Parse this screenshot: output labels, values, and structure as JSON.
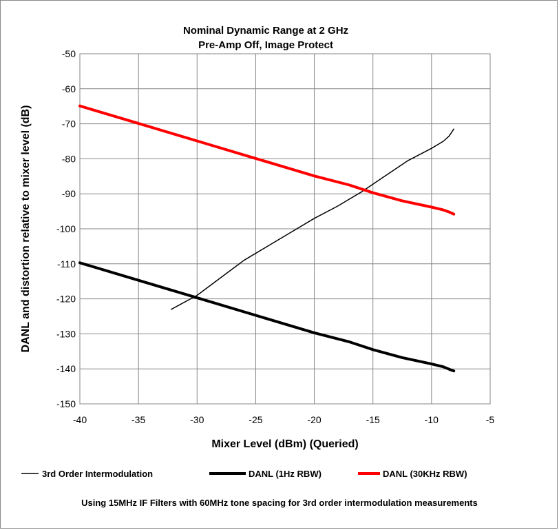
{
  "chart_data": {
    "type": "line",
    "title": "Nominal Dynamic Range at 2 GHz",
    "subtitle": "Pre-Amp Off, Image Protect",
    "xlabel": "Mixer Level (dBm) (Queried)",
    "ylabel": "DANL and distortion relative to mixer level (dB)",
    "xlim": [
      -40,
      -5
    ],
    "ylim": [
      -150,
      -50
    ],
    "xticks": [
      "-40",
      "-35",
      "-30",
      "-25",
      "-20",
      "-15",
      "-10",
      "-5"
    ],
    "yticks": [
      "-50",
      "-60",
      "-70",
      "-80",
      "-90",
      "-100",
      "-110",
      "-120",
      "-130",
      "-140",
      "-150"
    ],
    "xtick_values": [
      -40,
      -35,
      -30,
      -25,
      -20,
      -15,
      -10,
      -5
    ],
    "ytick_values": [
      -50,
      -60,
      -70,
      -80,
      -90,
      -100,
      -110,
      -120,
      -130,
      -140,
      -150
    ],
    "grid": true,
    "legend_position": "bottom",
    "series": [
      {
        "name": "3rd Order Intermodulation",
        "color": "#000000",
        "weight": "thin",
        "x": [
          -32.2,
          -30,
          -28,
          -26,
          -24,
          -22,
          -20,
          -18,
          -16,
          -14,
          -12,
          -10,
          -9,
          -8.5,
          -8.1
        ],
        "y": [
          -123,
          -119,
          -114,
          -109,
          -105,
          -101,
          -97,
          -93.5,
          -89.5,
          -85,
          -80.5,
          -77,
          -75,
          -73.5,
          -71.5
        ]
      },
      {
        "name": "DANL (1Hz RBW)",
        "color": "#000000",
        "weight": "thick",
        "x": [
          -40,
          -35,
          -30,
          -25,
          -20,
          -17,
          -15,
          -12.5,
          -10,
          -9,
          -8.5,
          -8.1
        ],
        "y": [
          -109.7,
          -114.7,
          -119.7,
          -124.7,
          -129.7,
          -132.3,
          -134.5,
          -136.8,
          -138.6,
          -139.4,
          -140.1,
          -140.6
        ],
        "y_note": ""
      },
      {
        "name": "DANL (30KHz RBW)",
        "color": "#ff0000",
        "weight": "thick",
        "x": [
          -40,
          -35,
          -30,
          -25,
          -20,
          -17,
          -15,
          -12.5,
          -10,
          -9,
          -8.5,
          -8.1
        ],
        "y": [
          -64.9,
          -69.9,
          -74.9,
          -79.9,
          -84.9,
          -87.5,
          -89.7,
          -92.0,
          -93.8,
          -94.6,
          -95.2,
          -95.8
        ]
      }
    ],
    "footnote": "Using 15MHz IF Filters with 60MHz tone spacing for 3rd order intermodulation measurements"
  }
}
